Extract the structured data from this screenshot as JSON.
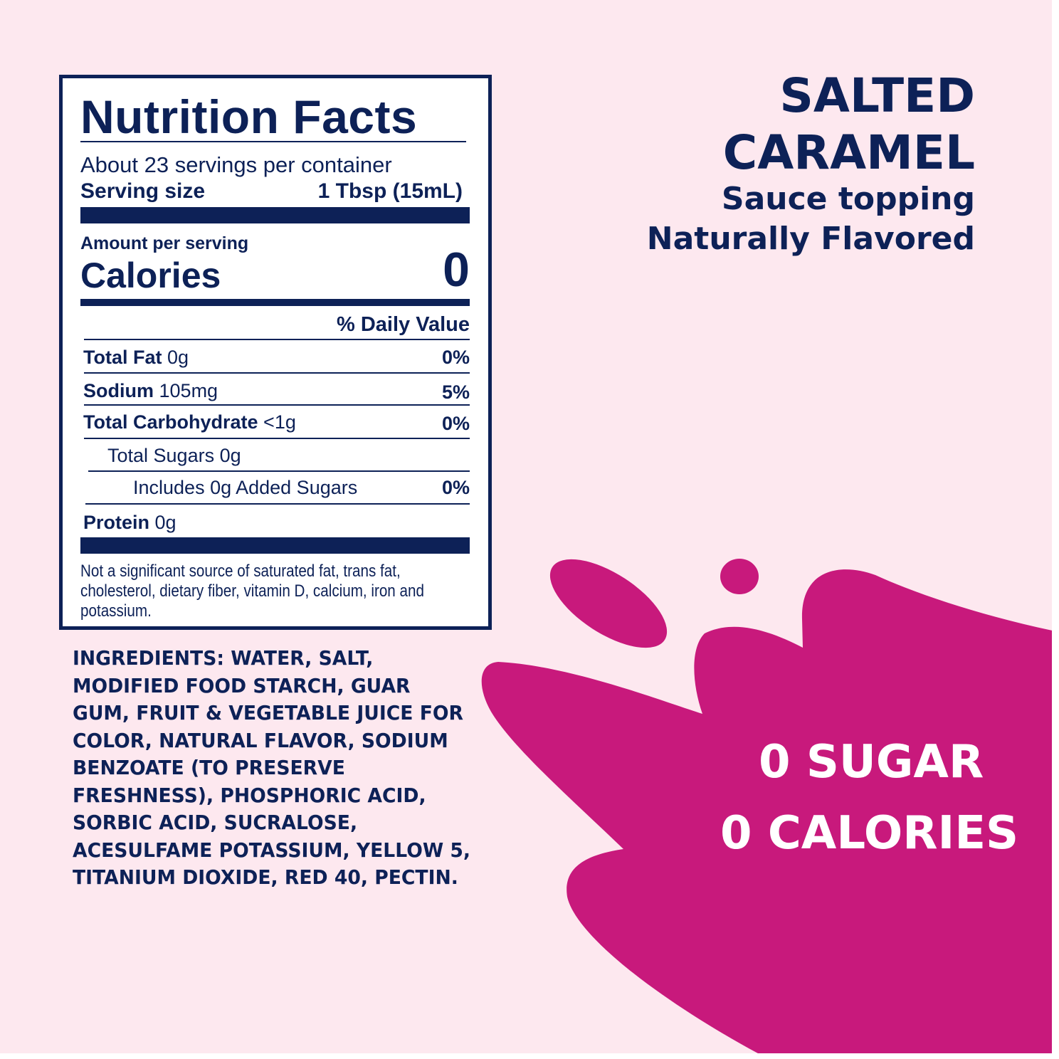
{
  "colors": {
    "background": "#fde8ef",
    "navy": "#0d2157",
    "splash": "#c8197c",
    "panel": "#ffffff"
  },
  "nutrition": {
    "title": "Nutrition Facts",
    "servings_per_container": "About 23 servings per container",
    "serving_size_label": "Serving size",
    "serving_size_value": "1 Tbsp (15mL)",
    "amount_per_serving": "Amount per serving",
    "calories_label": "Calories",
    "calories_value": "0",
    "daily_value_header": "% Daily Value",
    "rows": [
      {
        "name": "Total Fat",
        "amount": "0g",
        "dv": "0%"
      },
      {
        "name": "Sodium",
        "amount": "105mg",
        "dv": "5%"
      },
      {
        "name": "Total Carbohydrate",
        "amount": "<1g",
        "dv": "0%"
      },
      {
        "name": "Total Sugars 0g",
        "amount": "",
        "dv": ""
      },
      {
        "name": "Includes 0g Added Sugars",
        "amount": "",
        "dv": "0%"
      },
      {
        "name": "Protein",
        "amount": "0g",
        "dv": ""
      }
    ],
    "footnote_lines": [
      "Not a significant source of saturated fat, trans fat,",
      "cholesterol, dietary fiber, vitamin D, calcium, iron and",
      "potassium."
    ]
  },
  "product": {
    "name_line1": "SALTED",
    "name_line2": "CARAMEL",
    "descriptor": "Sauce topping",
    "flavor_note": "Naturally Flavored"
  },
  "ingredients_lines": [
    "INGREDIENTS: WATER, SALT,",
    "MODIFIED FOOD STARCH, GUAR",
    "GUM, FRUIT & VEGETABLE JUICE FOR",
    "COLOR, NATURAL FLAVOR, SODIUM",
    "BENZOATE (TO PRESERVE",
    "FRESHNESS), PHOSPHORIC ACID,",
    "SORBIC ACID, SUCRALOSE,",
    "ACESULFAME POTASSIUM, YELLOW 5,",
    "TITANIUM DIOXIDE, RED 40, PECTIN."
  ],
  "claims": {
    "line1": "0 SUGAR",
    "line2": "0 CALORIES"
  }
}
